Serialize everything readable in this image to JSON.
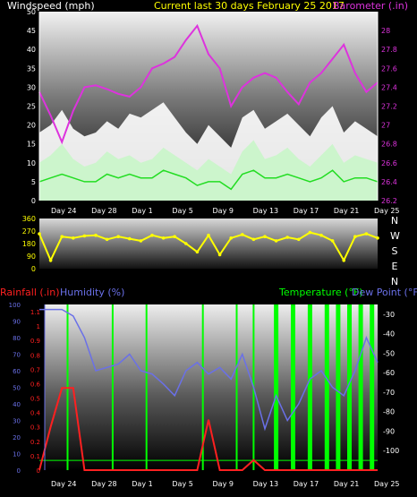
{
  "colors": {
    "wind": "#ffffff",
    "gust": "#ffffff",
    "avg_wind": "#22dd22",
    "baro": "#dd33dd",
    "dir": "#ffff00",
    "rain": "#ff2020",
    "humidity": "#6a70e8",
    "temp": "#00ff00",
    "title": "#ffff00",
    "axis_text": "#ffffff"
  },
  "header": {
    "wind_label": "Windspeed (mph)",
    "title": "Current last 30 days February 25 2017",
    "baro_label": "Barometer (.in)"
  },
  "lower_header": {
    "rain_label": "Rainfall (.in)",
    "hum_label": "Humidity (%)",
    "temp_label": "Temperature (°F)",
    "dew_label": "Dew Point (°F)"
  },
  "x_ticks": [
    "Day 24",
    "Day 28",
    "Day 1",
    "Day 5",
    "Day 9",
    "Day 13",
    "Day 17",
    "Day 21",
    "Day 25"
  ],
  "compass": [
    "N",
    "W",
    "S",
    "E",
    "N"
  ],
  "chart_data": [
    {
      "type": "line",
      "title": "Current last 30 days February 25 2017",
      "series": [
        {
          "name": "Windspeed (mph)",
          "x": [
            0,
            1,
            2,
            3,
            4,
            5,
            6,
            7,
            8,
            9,
            10,
            11,
            12,
            13,
            14,
            15,
            16,
            17,
            18,
            19,
            20,
            21,
            22,
            23,
            24,
            25,
            26,
            27,
            28,
            29,
            30
          ],
          "values": [
            10,
            12,
            15,
            11,
            9,
            10,
            13,
            11,
            12,
            10,
            11,
            14,
            12,
            10,
            8,
            11,
            9,
            7,
            13,
            16,
            11,
            12,
            14,
            11,
            9,
            12,
            15,
            10,
            12,
            11,
            10
          ]
        },
        {
          "name": "Gust",
          "x": [
            0,
            1,
            2,
            3,
            4,
            5,
            6,
            7,
            8,
            9,
            10,
            11,
            12,
            13,
            14,
            15,
            16,
            17,
            18,
            19,
            20,
            21,
            22,
            23,
            24,
            25,
            26,
            27,
            28,
            29,
            30
          ],
          "values": [
            18,
            20,
            24,
            19,
            17,
            18,
            21,
            19,
            23,
            22,
            24,
            26,
            22,
            18,
            15,
            20,
            17,
            14,
            22,
            24,
            19,
            21,
            23,
            20,
            17,
            22,
            25,
            18,
            21,
            19,
            17
          ]
        },
        {
          "name": "Average wind",
          "x": [
            0,
            1,
            2,
            3,
            4,
            5,
            6,
            7,
            8,
            9,
            10,
            11,
            12,
            13,
            14,
            15,
            16,
            17,
            18,
            19,
            20,
            21,
            22,
            23,
            24,
            25,
            26,
            27,
            28,
            29,
            30
          ],
          "values": [
            5,
            6,
            7,
            6,
            5,
            5,
            7,
            6,
            7,
            6,
            6,
            8,
            7,
            6,
            4,
            5,
            5,
            3,
            7,
            8,
            6,
            6,
            7,
            6,
            5,
            6,
            8,
            5,
            6,
            6,
            5
          ]
        },
        {
          "name": "Barometer (.in)",
          "x": [
            0,
            1,
            2,
            3,
            4,
            5,
            6,
            7,
            8,
            9,
            10,
            11,
            12,
            13,
            14,
            15,
            16,
            17,
            18,
            19,
            20,
            21,
            22,
            23,
            24,
            25,
            26,
            27,
            28,
            29,
            30
          ],
          "values": [
            27.35,
            27.1,
            26.82,
            27.15,
            27.4,
            27.42,
            27.38,
            27.33,
            27.3,
            27.4,
            27.6,
            27.65,
            27.72,
            27.9,
            28.05,
            27.75,
            27.6,
            27.2,
            27.4,
            27.5,
            27.55,
            27.5,
            27.35,
            27.22,
            27.45,
            27.55,
            27.7,
            27.85,
            27.55,
            27.35,
            27.45
          ]
        }
      ],
      "ylabel": "Windspeed (mph)",
      "ylim": [
        0,
        50
      ],
      "y2label": "Barometer (.in)",
      "y2lim": [
        26.2,
        28.2
      ]
    },
    {
      "type": "scatter",
      "series": [
        {
          "name": "Wind direction",
          "x": [
            0,
            1,
            2,
            3,
            4,
            5,
            6,
            7,
            8,
            9,
            10,
            11,
            12,
            13,
            14,
            15,
            16,
            17,
            18,
            19,
            20,
            21,
            22,
            23,
            24,
            25,
            26,
            27,
            28,
            29,
            30
          ],
          "values": [
            250,
            60,
            230,
            220,
            235,
            240,
            210,
            230,
            215,
            200,
            240,
            220,
            230,
            180,
            120,
            240,
            100,
            220,
            245,
            210,
            230,
            200,
            225,
            210,
            260,
            240,
            200,
            60,
            230,
            250,
            220
          ]
        }
      ],
      "ylim": [
        0,
        360
      ]
    },
    {
      "type": "line",
      "series": [
        {
          "name": "Rainfall (.in)",
          "x": [
            0,
            1,
            2,
            3,
            4,
            5,
            6,
            7,
            8,
            9,
            10,
            11,
            12,
            13,
            14,
            15,
            16,
            17,
            18,
            19,
            20,
            21,
            22,
            23,
            24,
            25,
            26,
            27,
            28,
            29,
            30
          ],
          "values": [
            0,
            0.3,
            0.57,
            0.57,
            0,
            0,
            0,
            0,
            0,
            0,
            0,
            0,
            0,
            0,
            0,
            0.35,
            0,
            0,
            0,
            0.07,
            0,
            0,
            0,
            0,
            0,
            0,
            0,
            0,
            0,
            0,
            0
          ]
        },
        {
          "name": "Humidity (%)",
          "x": [
            0,
            1,
            2,
            3,
            4,
            5,
            6,
            7,
            8,
            9,
            10,
            11,
            12,
            13,
            14,
            15,
            16,
            17,
            18,
            19,
            20,
            21,
            22,
            23,
            24,
            25,
            26,
            27,
            28,
            29,
            30
          ],
          "values": [
            97,
            97,
            97,
            93,
            80,
            60,
            62,
            64,
            70,
            60,
            58,
            52,
            45,
            60,
            65,
            58,
            62,
            55,
            70,
            50,
            25,
            45,
            30,
            40,
            55,
            60,
            50,
            45,
            60,
            80,
            65
          ]
        },
        {
          "name": "Temperature (°F)",
          "x": [
            0,
            1,
            2,
            3,
            4,
            5,
            6,
            7,
            8,
            9,
            10,
            11,
            12,
            13,
            14,
            15,
            16,
            17,
            18,
            19,
            20,
            21,
            22,
            23,
            24,
            25,
            26,
            27,
            28,
            29,
            30
          ],
          "values": [
            -105,
            -105,
            -105,
            -105,
            -105,
            -105,
            -105,
            -105,
            -105,
            -105,
            -105,
            -105,
            -105,
            -105,
            -105,
            -105,
            -105,
            -105,
            -105,
            -105,
            -105,
            -105,
            -105,
            -105,
            -105,
            -105,
            -105,
            -105,
            -105,
            -105,
            -105
          ]
        }
      ],
      "ylabel": "Humidity (%)",
      "ylim": [
        0,
        100
      ],
      "y2label": "Rainfall (.in)",
      "y2lim": [
        0,
        1.15
      ],
      "y3label": "Temperature (°F)",
      "y3lim": [
        -110,
        -25
      ]
    }
  ],
  "axes": {
    "wind_ticks": [
      "0",
      "5",
      "10",
      "15",
      "20",
      "25",
      "30",
      "35",
      "40",
      "45",
      "50"
    ],
    "baro_ticks": [
      "26.2",
      "26.4",
      "26.6",
      "26.8",
      "27",
      "27.2",
      "27.4",
      "27.6",
      "27.8",
      "28"
    ],
    "dir_ticks": [
      "0",
      "90",
      "180",
      "270",
      "360"
    ],
    "hum_ticks": [
      "0",
      "10",
      "20",
      "30",
      "40",
      "50",
      "60",
      "70",
      "80",
      "90",
      "100"
    ],
    "rain_ticks": [
      "0",
      "0.1",
      "0.2",
      "0.3",
      "0.4",
      "0.5",
      "0.6",
      "0.7",
      "0.8",
      "0.9",
      "1",
      "1.1"
    ],
    "temp_ticks": [
      "-100",
      "-90",
      "-80",
      "-70",
      "-60",
      "-50",
      "-40",
      "-30"
    ]
  }
}
